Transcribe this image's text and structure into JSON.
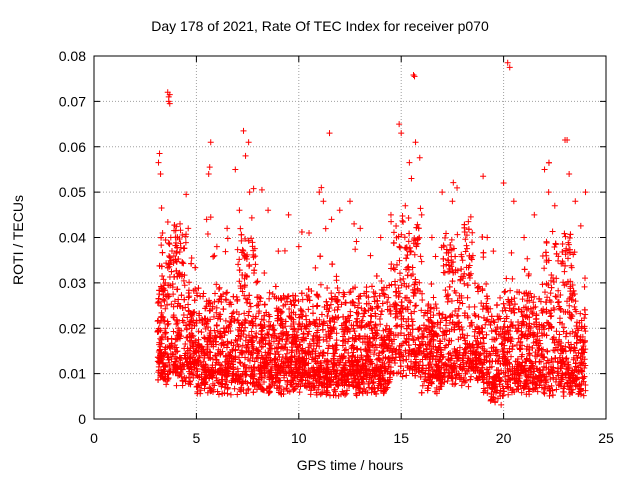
{
  "chart_data": {
    "type": "scatter",
    "title": "Day 178 of 2021, Rate Of TEC Index for receiver p070",
    "xlabel": "GPS time / hours",
    "ylabel": "ROTI / TECUs",
    "xlim": [
      0,
      25
    ],
    "ylim": [
      0,
      0.08
    ],
    "xticks": [
      "0",
      "5",
      "10",
      "15",
      "20",
      "25"
    ],
    "yticks": [
      "0",
      "0.01",
      "0.02",
      "0.03",
      "0.04",
      "0.05",
      "0.06",
      "0.07",
      "0.08"
    ],
    "grid": true,
    "marker": "+",
    "color": "#ff0000",
    "series": [
      {
        "x": [
          3.15,
          3.2,
          3.25,
          3.3,
          3.35,
          3.6,
          3.65,
          3.7,
          3.65,
          3.7,
          3.75,
          3.8,
          4.2,
          4.5,
          4.6,
          5.5,
          5.6,
          5.7,
          5.65,
          6.0,
          6.5,
          6.9,
          7.1,
          7.3,
          7.4,
          7.55,
          7.6,
          8.2,
          8.5,
          9.0,
          9.5,
          10.0,
          10.5,
          11.0,
          11.1,
          11.2,
          11.5,
          11.6,
          12.0,
          12.5,
          12.7,
          13.0,
          13.5,
          14.0,
          14.5,
          14.9,
          15.0,
          15.2,
          15.4,
          15.5,
          15.6,
          15.65,
          15.7,
          16.0,
          16.5,
          17.0,
          17.5,
          18.0,
          18.5,
          19.0,
          19.2,
          19.5,
          20.0,
          20.2,
          20.3,
          20.5,
          21.0,
          21.5,
          22.0,
          22.2,
          22.5,
          23.0,
          23.1,
          23.2,
          23.5,
          24.0
        ],
        "y": [
          0.0565,
          0.0585,
          0.054,
          0.0465,
          0.041,
          0.072,
          0.071,
          0.0695,
          0.07,
          0.0715,
          0.04,
          0.035,
          0.043,
          0.0495,
          0.042,
          0.044,
          0.054,
          0.061,
          0.0555,
          0.038,
          0.042,
          0.055,
          0.046,
          0.0635,
          0.058,
          0.061,
          0.05,
          0.0505,
          0.046,
          0.037,
          0.045,
          0.038,
          0.041,
          0.05,
          0.051,
          0.048,
          0.063,
          0.044,
          0.046,
          0.048,
          0.043,
          0.042,
          0.036,
          0.04,
          0.045,
          0.065,
          0.063,
          0.047,
          0.0565,
          0.053,
          0.0758,
          0.0755,
          0.061,
          0.045,
          0.04,
          0.05,
          0.048,
          0.035,
          0.036,
          0.0535,
          0.04,
          0.037,
          0.052,
          0.0785,
          0.0775,
          0.048,
          0.04,
          0.045,
          0.055,
          0.05,
          0.047,
          0.0615,
          0.0615,
          0.054,
          0.048,
          0.05
        ]
      }
    ]
  }
}
